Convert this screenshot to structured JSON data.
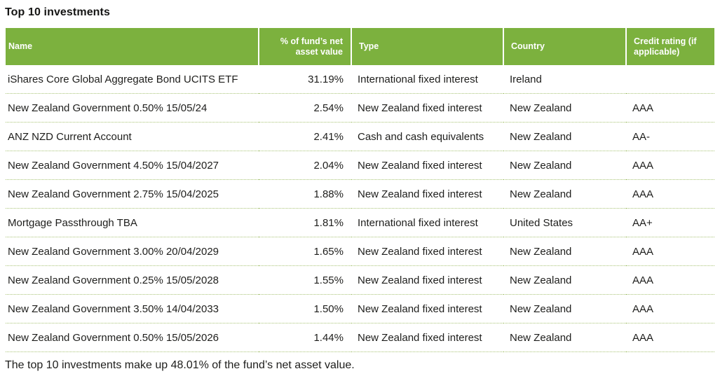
{
  "title": "Top 10 investments",
  "colors": {
    "header_bg": "#7cb13e",
    "header_text": "#ffffff",
    "row_divider": "#a9c476",
    "body_text": "#1e1e1c"
  },
  "table": {
    "columns": [
      {
        "label": "Name",
        "align": "left"
      },
      {
        "label": "% of fund’s net asset value",
        "align": "right"
      },
      {
        "label": "Type",
        "align": "left"
      },
      {
        "label": "Country",
        "align": "left"
      },
      {
        "label": "Credit rating (if applicable)",
        "align": "left"
      }
    ],
    "rows": [
      [
        "iShares Core Global Aggregate Bond UCITS ETF",
        "31.19%",
        "International fixed interest",
        "Ireland",
        ""
      ],
      [
        "New Zealand Government 0.50% 15/05/24",
        "2.54%",
        "New Zealand fixed interest",
        "New Zealand",
        "AAA"
      ],
      [
        "ANZ NZD Current Account",
        "2.41%",
        "Cash and cash equivalents",
        "New Zealand",
        "AA-"
      ],
      [
        "New Zealand Government 4.50% 15/04/2027",
        "2.04%",
        "New Zealand fixed interest",
        "New Zealand",
        "AAA"
      ],
      [
        "New Zealand Government 2.75% 15/04/2025",
        "1.88%",
        "New Zealand fixed interest",
        "New Zealand",
        "AAA"
      ],
      [
        "Mortgage Passthrough TBA",
        "1.81%",
        "International fixed interest",
        "United States",
        "AA+"
      ],
      [
        "New Zealand Government 3.00% 20/04/2029",
        "1.65%",
        "New Zealand fixed interest",
        "New Zealand",
        "AAA"
      ],
      [
        "New Zealand Government 0.25% 15/05/2028",
        "1.55%",
        "New Zealand fixed interest",
        "New Zealand",
        "AAA"
      ],
      [
        "New Zealand Government 3.50% 14/04/2033",
        "1.50%",
        "New Zealand fixed interest",
        "New Zealand",
        "AAA"
      ],
      [
        "New Zealand Government 0.50% 15/05/2026",
        "1.44%",
        "New Zealand fixed interest",
        "New Zealand",
        "AAA"
      ]
    ]
  },
  "footer": "The top 10 investments make up 48.01% of the fund’s net asset value."
}
